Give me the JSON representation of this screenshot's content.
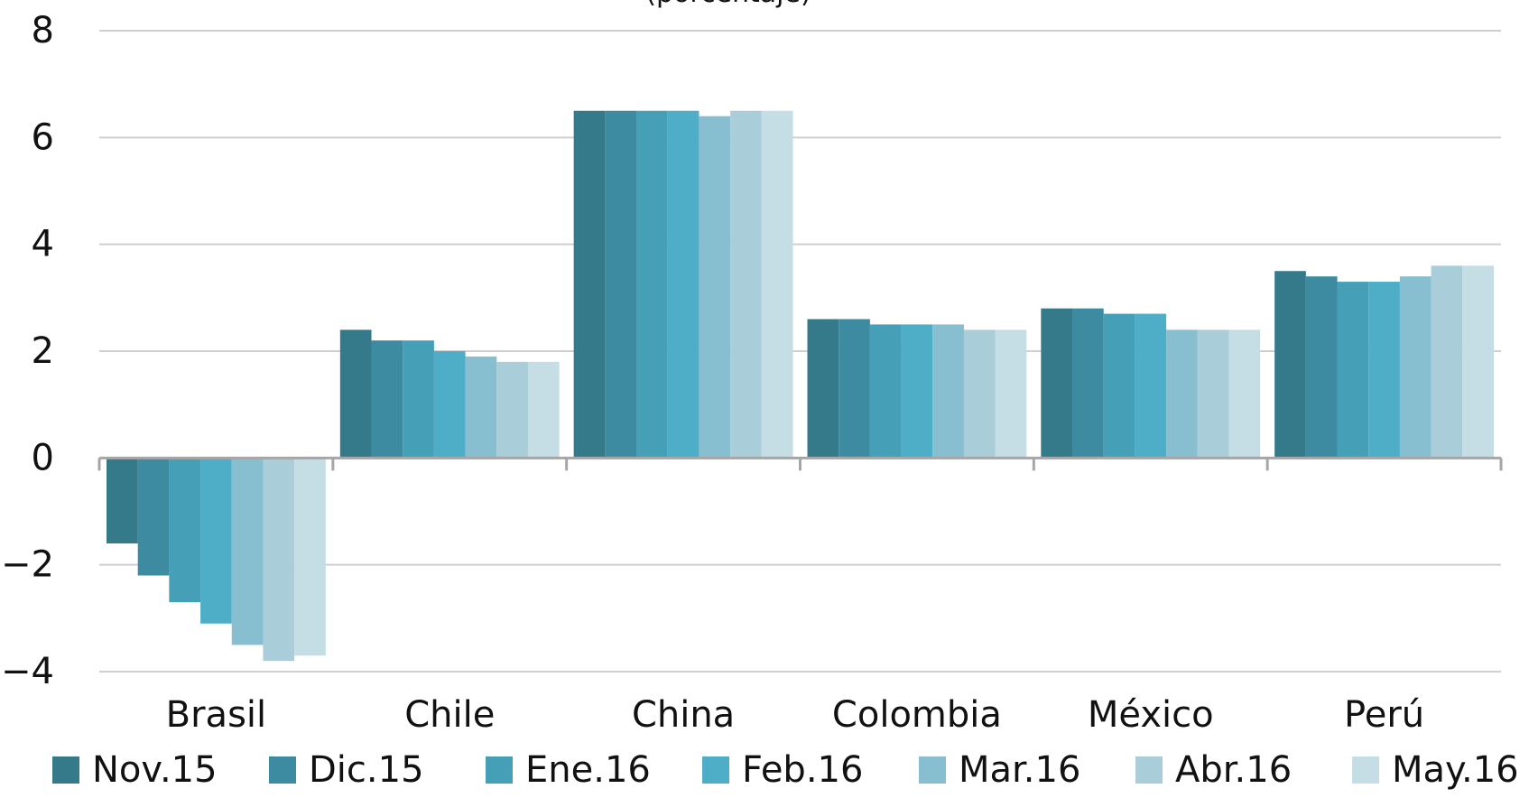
{
  "chart_data": {
    "type": "bar",
    "title": "(porcentaje)",
    "xlabel": "",
    "ylabel": "",
    "ylim": [
      -4,
      8
    ],
    "yticks": [
      8,
      6,
      4,
      2,
      0,
      -2,
      -4
    ],
    "grid": true,
    "legend_position": "bottom",
    "categories": [
      "Brasil",
      "Chile",
      "China",
      "Colombia",
      "México",
      "Perú"
    ],
    "series": [
      {
        "name": "Nov.15",
        "color": "#357a8a",
        "values": [
          -1.6,
          2.4,
          6.5,
          2.6,
          2.8,
          3.5
        ]
      },
      {
        "name": "Dic.15",
        "color": "#3d8ba1",
        "values": [
          -2.2,
          2.2,
          6.5,
          2.6,
          2.8,
          3.4
        ]
      },
      {
        "name": "Ene.16",
        "color": "#45a0b7",
        "values": [
          -2.7,
          2.2,
          6.5,
          2.5,
          2.7,
          3.3
        ]
      },
      {
        "name": "Feb.16",
        "color": "#4eaec7",
        "values": [
          -3.1,
          2.0,
          6.5,
          2.5,
          2.7,
          3.3
        ]
      },
      {
        "name": "Mar.16",
        "color": "#87bfd1",
        "values": [
          -3.5,
          1.9,
          6.4,
          2.5,
          2.4,
          3.4
        ]
      },
      {
        "name": "Abr.16",
        "color": "#a9ceda",
        "values": [
          -3.8,
          1.8,
          6.5,
          2.4,
          2.4,
          3.6
        ]
      },
      {
        "name": "May.16",
        "color": "#c5dee6",
        "values": [
          -3.7,
          1.8,
          6.5,
          2.4,
          2.4,
          3.6
        ]
      }
    ]
  }
}
